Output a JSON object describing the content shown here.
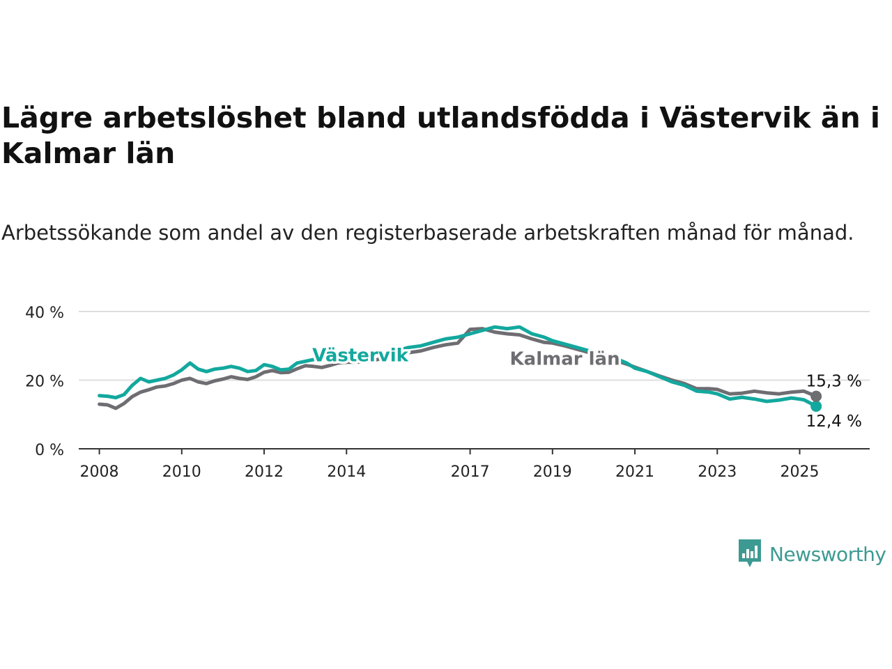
{
  "header": {
    "title": "Lägre arbetslöshet bland utlandsfödda i Västervik än i Kalmar län",
    "subtitle": "Arbetssökande som andel av den registerbaserade arbetskraften månad för månad."
  },
  "brand": {
    "name": "Newsworthy",
    "icon": "newsworthy-chart-bubble-icon",
    "color": "#3d9a92"
  },
  "colors": {
    "vastervik": "#13a89e",
    "kalmar": "#6e6d72",
    "grid": "#dddddd",
    "axis": "#333333",
    "text": "#222222"
  },
  "chart_data": {
    "type": "line",
    "title": "Lägre arbetslöshet bland utlandsfödda i Västervik än i Kalmar län",
    "subtitle": "Arbetssökande som andel av den registerbaserade arbetskraften månad för månad.",
    "xlabel": "",
    "ylabel": "",
    "xlim": [
      2007.5,
      2026.7
    ],
    "ylim": [
      0,
      40
    ],
    "y_ticks": [
      0,
      20,
      40
    ],
    "y_tick_labels": [
      "0 %",
      "20 %",
      "40 %"
    ],
    "x_ticks": [
      2008,
      2010,
      2012,
      2014,
      2017,
      2019,
      2021,
      2023,
      2025
    ],
    "x_tick_labels": [
      "2008",
      "2010",
      "2012",
      "2014",
      "2017",
      "2019",
      "2021",
      "2023",
      "2025"
    ],
    "grid": true,
    "legend": "inline labels on lines",
    "series": [
      {
        "name": "Västervik",
        "color": "#13a89e",
        "end_label": "12,4 %",
        "points": [
          [
            2008.0,
            15.5
          ],
          [
            2008.2,
            15.3
          ],
          [
            2008.4,
            14.9
          ],
          [
            2008.6,
            15.8
          ],
          [
            2008.8,
            18.5
          ],
          [
            2009.0,
            20.5
          ],
          [
            2009.2,
            19.5
          ],
          [
            2009.4,
            20.0
          ],
          [
            2009.6,
            20.5
          ],
          [
            2009.8,
            21.5
          ],
          [
            2010.0,
            23.0
          ],
          [
            2010.2,
            25.0
          ],
          [
            2010.4,
            23.2
          ],
          [
            2010.6,
            22.5
          ],
          [
            2010.8,
            23.2
          ],
          [
            2011.0,
            23.5
          ],
          [
            2011.2,
            24.0
          ],
          [
            2011.4,
            23.5
          ],
          [
            2011.6,
            22.5
          ],
          [
            2011.8,
            22.8
          ],
          [
            2012.0,
            24.5
          ],
          [
            2012.2,
            24.0
          ],
          [
            2012.4,
            23.0
          ],
          [
            2012.6,
            23.2
          ],
          [
            2012.8,
            25.0
          ],
          [
            2013.0,
            25.5
          ],
          [
            2013.2,
            26.0
          ],
          [
            2013.4,
            26.5
          ],
          [
            2013.6,
            25.5
          ],
          [
            2013.8,
            26.0
          ],
          [
            2014.0,
            26.5
          ],
          [
            2014.3,
            27.0
          ],
          [
            2014.6,
            27.5
          ],
          [
            2014.9,
            28.0
          ],
          [
            2015.2,
            28.5
          ],
          [
            2015.5,
            29.5
          ],
          [
            2015.8,
            30.0
          ],
          [
            2016.1,
            31.0
          ],
          [
            2016.4,
            32.0
          ],
          [
            2016.7,
            32.5
          ],
          [
            2017.0,
            33.5
          ],
          [
            2017.3,
            34.5
          ],
          [
            2017.6,
            35.5
          ],
          [
            2017.9,
            35.0
          ],
          [
            2018.2,
            35.5
          ],
          [
            2018.5,
            33.5
          ],
          [
            2018.8,
            32.5
          ],
          [
            2019.0,
            31.5
          ],
          [
            2019.3,
            30.5
          ],
          [
            2019.6,
            29.5
          ],
          [
            2019.9,
            28.5
          ],
          [
            2020.2,
            27.5
          ],
          [
            2020.5,
            26.5
          ],
          [
            2020.8,
            25.0
          ],
          [
            2021.0,
            23.5
          ],
          [
            2021.3,
            22.5
          ],
          [
            2021.6,
            21.0
          ],
          [
            2021.9,
            19.5
          ],
          [
            2022.2,
            18.5
          ],
          [
            2022.5,
            16.8
          ],
          [
            2022.8,
            16.5
          ],
          [
            2023.0,
            16.0
          ],
          [
            2023.3,
            14.5
          ],
          [
            2023.6,
            15.0
          ],
          [
            2023.9,
            14.5
          ],
          [
            2024.2,
            13.8
          ],
          [
            2024.5,
            14.2
          ],
          [
            2024.8,
            14.8
          ],
          [
            2025.1,
            14.3
          ],
          [
            2025.4,
            12.4
          ]
        ]
      },
      {
        "name": "Kalmar län",
        "color": "#6e6d72",
        "end_label": "15,3 %",
        "points": [
          [
            2008.0,
            13.0
          ],
          [
            2008.2,
            12.8
          ],
          [
            2008.4,
            11.8
          ],
          [
            2008.6,
            13.2
          ],
          [
            2008.8,
            15.2
          ],
          [
            2009.0,
            16.5
          ],
          [
            2009.2,
            17.2
          ],
          [
            2009.4,
            18.0
          ],
          [
            2009.6,
            18.3
          ],
          [
            2009.8,
            19.0
          ],
          [
            2010.0,
            20.0
          ],
          [
            2010.2,
            20.5
          ],
          [
            2010.4,
            19.5
          ],
          [
            2010.6,
            19.0
          ],
          [
            2010.8,
            19.8
          ],
          [
            2011.0,
            20.3
          ],
          [
            2011.2,
            21.0
          ],
          [
            2011.4,
            20.5
          ],
          [
            2011.6,
            20.2
          ],
          [
            2011.8,
            21.0
          ],
          [
            2012.0,
            22.3
          ],
          [
            2012.2,
            22.8
          ],
          [
            2012.4,
            22.2
          ],
          [
            2012.6,
            22.3
          ],
          [
            2012.8,
            23.3
          ],
          [
            2013.0,
            24.2
          ],
          [
            2013.2,
            24.0
          ],
          [
            2013.4,
            23.7
          ],
          [
            2013.6,
            24.3
          ],
          [
            2013.8,
            25.0
          ],
          [
            2014.0,
            25.2
          ],
          [
            2014.3,
            25.3
          ],
          [
            2014.6,
            25.5
          ],
          [
            2014.9,
            26.5
          ],
          [
            2015.2,
            27.5
          ],
          [
            2015.5,
            28.0
          ],
          [
            2015.8,
            28.5
          ],
          [
            2016.1,
            29.5
          ],
          [
            2016.4,
            30.3
          ],
          [
            2016.7,
            30.8
          ],
          [
            2017.0,
            34.8
          ],
          [
            2017.3,
            35.0
          ],
          [
            2017.6,
            34.0
          ],
          [
            2017.9,
            33.5
          ],
          [
            2018.2,
            33.2
          ],
          [
            2018.5,
            32.0
          ],
          [
            2018.8,
            31.0
          ],
          [
            2019.0,
            30.8
          ],
          [
            2019.3,
            30.0
          ],
          [
            2019.6,
            29.0
          ],
          [
            2019.9,
            28.0
          ],
          [
            2020.2,
            27.0
          ],
          [
            2020.5,
            25.8
          ],
          [
            2020.8,
            24.7
          ],
          [
            2021.0,
            23.8
          ],
          [
            2021.3,
            22.5
          ],
          [
            2021.6,
            21.2
          ],
          [
            2021.9,
            20.0
          ],
          [
            2022.2,
            19.0
          ],
          [
            2022.5,
            17.5
          ],
          [
            2022.8,
            17.5
          ],
          [
            2023.0,
            17.3
          ],
          [
            2023.3,
            16.0
          ],
          [
            2023.6,
            16.2
          ],
          [
            2023.9,
            16.8
          ],
          [
            2024.2,
            16.3
          ],
          [
            2024.5,
            16.0
          ],
          [
            2024.8,
            16.5
          ],
          [
            2025.1,
            16.8
          ],
          [
            2025.4,
            15.3
          ]
        ]
      }
    ]
  }
}
